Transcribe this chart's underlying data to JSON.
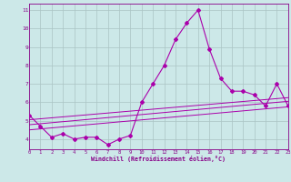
{
  "xlabel": "Windchill (Refroidissement éolien,°C)",
  "x_hours": [
    0,
    1,
    2,
    3,
    4,
    5,
    6,
    7,
    8,
    9,
    10,
    11,
    12,
    13,
    14,
    15,
    16,
    17,
    18,
    19,
    20,
    21,
    22,
    23
  ],
  "temp_line": [
    5.3,
    4.7,
    4.1,
    4.3,
    4.0,
    4.1,
    4.1,
    3.7,
    4.0,
    4.2,
    6.0,
    7.0,
    8.0,
    9.4,
    10.3,
    11.0,
    8.9,
    7.3,
    6.6,
    6.6,
    6.4,
    5.8,
    7.0,
    5.8
  ],
  "trend_lines": [
    {
      "y0": 5.05,
      "y1": 6.25
    },
    {
      "y0": 4.78,
      "y1": 6.05
    },
    {
      "y0": 4.5,
      "y1": 5.75
    }
  ],
  "line_color": "#aa00aa",
  "bg_color": "#cce8e8",
  "grid_color": "#aac4c4",
  "axis_color": "#880088",
  "ylim_min": 3.45,
  "ylim_max": 11.35,
  "xlim_min": 0,
  "xlim_max": 23,
  "yticks": [
    4,
    5,
    6,
    7,
    8,
    9,
    10,
    11
  ],
  "xticks": [
    0,
    1,
    2,
    3,
    4,
    5,
    6,
    7,
    8,
    9,
    10,
    11,
    12,
    13,
    14,
    15,
    16,
    17,
    18,
    19,
    20,
    21,
    22,
    23
  ]
}
